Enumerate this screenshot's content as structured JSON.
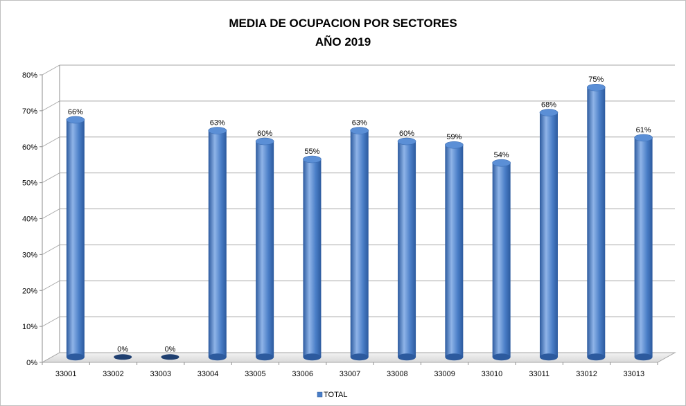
{
  "chart_data": {
    "type": "bar",
    "title": [
      "MEDIA DE OCUPACION POR SECTORES",
      "AÑO 2019"
    ],
    "categories": [
      "33001",
      "33002",
      "33003",
      "33004",
      "33005",
      "33006",
      "33007",
      "33008",
      "33009",
      "33010",
      "33011",
      "33012",
      "33013"
    ],
    "series": [
      {
        "name": "TOTAL",
        "values": [
          66,
          0,
          0,
          63,
          60,
          55,
          63,
          60,
          59,
          54,
          68,
          75,
          61
        ]
      }
    ],
    "data_labels": [
      "66%",
      "0%",
      "0%",
      "63%",
      "60%",
      "55%",
      "63%",
      "60%",
      "59%",
      "54%",
      "68%",
      "75%",
      "61%"
    ],
    "yticks": [
      "0%",
      "10%",
      "20%",
      "30%",
      "40%",
      "50%",
      "60%",
      "70%",
      "80%"
    ],
    "ylim": [
      0,
      80
    ],
    "grid": true,
    "legend": "bottom",
    "style": "3d-cylinder",
    "colors": {
      "bar": "#4a7ec7",
      "bar_dark": "#2c5a9e",
      "bar_light": "#8fb4e8",
      "zero_bar": "#1f3f70",
      "grid": "#a6a6a6"
    }
  }
}
